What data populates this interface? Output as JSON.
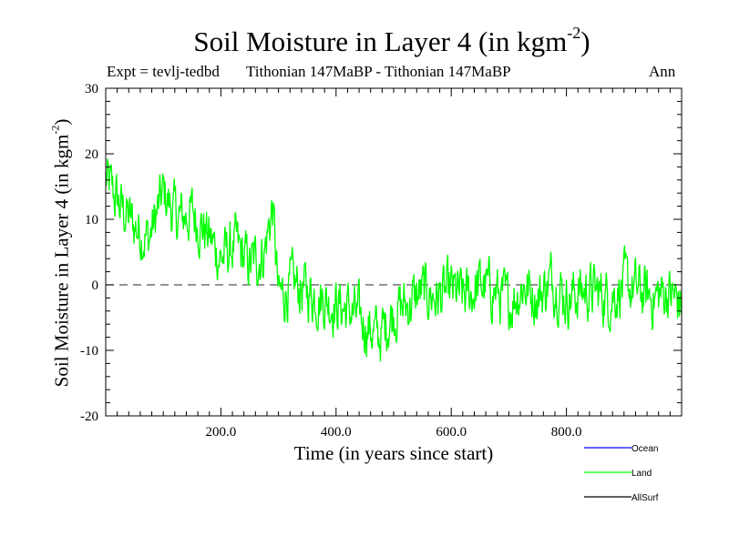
{
  "chart_data": {
    "type": "line",
    "title": "Soil Moisture in Layer 4 (in kgm",
    "title_sup": "-2",
    "title_suffix": ")",
    "subtitle_left": "Expt = tevlj-tedbd",
    "subtitle_center": "Tithonian 147MaBP - Tithonian 147MaBP",
    "subtitle_right": "Ann",
    "xlabel": "Time (in years since start)",
    "ylabel": "Soil Moisture in Layer 4 (in kgm",
    "ylabel_sup": "-2",
    "ylabel_suffix": ")",
    "xlim": [
      0,
      1000
    ],
    "ylim": [
      -20,
      30
    ],
    "x_ticks": [
      200,
      400,
      600,
      800
    ],
    "x_tick_labels": [
      "200.0",
      "400.0",
      "600.0",
      "800.0"
    ],
    "y_ticks": [
      -20,
      -10,
      0,
      10,
      20,
      30
    ],
    "y_tick_labels": [
      "-20",
      "-10",
      "0",
      "10",
      "20",
      "30"
    ],
    "reference_line": 0,
    "series": [
      {
        "name": "Land",
        "color": "#00ff00",
        "x": [
          0,
          25,
          50,
          75,
          100,
          125,
          150,
          175,
          200,
          225,
          250,
          275,
          290,
          300,
          325,
          350,
          375,
          400,
          425,
          450,
          475,
          500,
          525,
          550,
          575,
          600,
          625,
          650,
          675,
          700,
          725,
          750,
          775,
          800,
          825,
          850,
          875,
          900,
          925,
          950,
          975,
          1000
        ],
        "y": [
          16,
          12,
          9,
          7,
          14,
          10,
          11,
          8,
          4,
          6,
          3,
          5,
          12,
          -2,
          0,
          -1,
          -2,
          -3,
          -4,
          -6,
          -8,
          -4,
          -3,
          -1,
          -2,
          -1,
          -2,
          0,
          -1,
          -3,
          0,
          -2,
          1,
          -2,
          -1,
          -1,
          -2,
          0,
          -1,
          -2,
          -1,
          -3
        ]
      }
    ],
    "legend": [
      {
        "label": "Ocean",
        "color": "#0000ff"
      },
      {
        "label": "Land",
        "color": "#00ff00"
      },
      {
        "label": "AllSurf",
        "color": "#000000"
      }
    ]
  }
}
